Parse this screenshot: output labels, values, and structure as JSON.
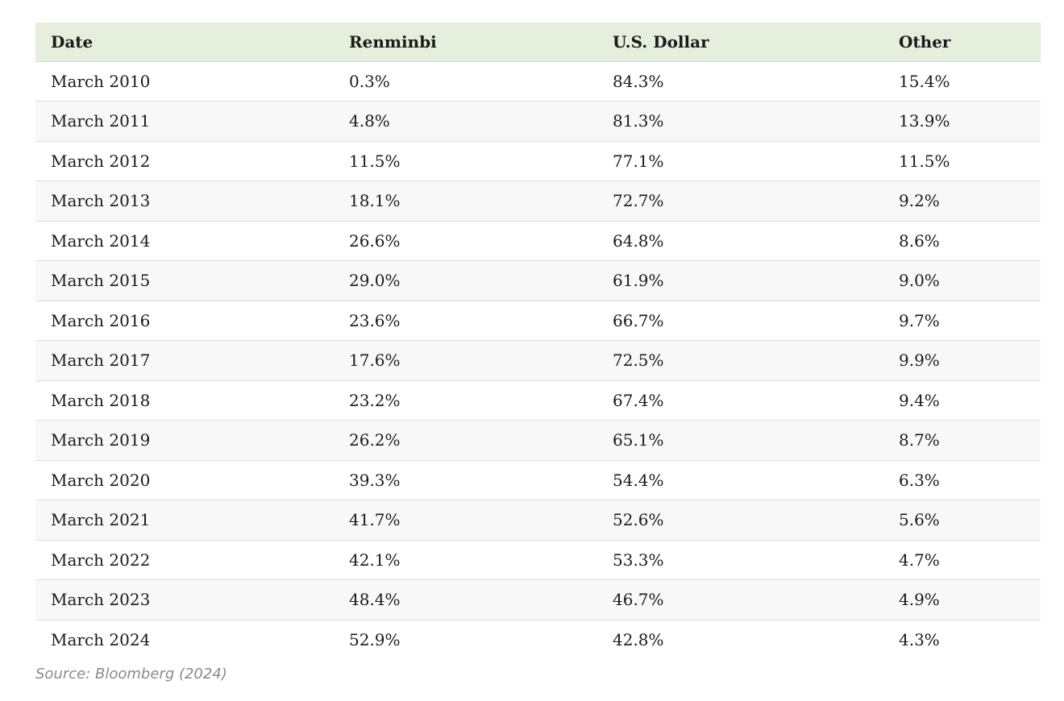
{
  "table": {
    "headers": [
      "Date",
      "Renminbi",
      "U.S. Dollar",
      "Other"
    ],
    "rows": [
      [
        "March 2010",
        "0.3%",
        "84.3%",
        "15.4%"
      ],
      [
        "March 2011",
        "4.8%",
        "81.3%",
        "13.9%"
      ],
      [
        "March 2012",
        "11.5%",
        "77.1%",
        "11.5%"
      ],
      [
        "March 2013",
        "18.1%",
        "72.7%",
        "9.2%"
      ],
      [
        "March 2014",
        "26.6%",
        "64.8%",
        "8.6%"
      ],
      [
        "March 2015",
        "29.0%",
        "61.9%",
        "9.0%"
      ],
      [
        "March 2016",
        "23.6%",
        "66.7%",
        "9.7%"
      ],
      [
        "March 2017",
        "17.6%",
        "72.5%",
        "9.9%"
      ],
      [
        "March 2018",
        "23.2%",
        "67.4%",
        "9.4%"
      ],
      [
        "March 2019",
        "26.2%",
        "65.1%",
        "8.7%"
      ],
      [
        "March 2020",
        "39.3%",
        "54.4%",
        "6.3%"
      ],
      [
        "March 2021",
        "41.7%",
        "52.6%",
        "5.6%"
      ],
      [
        "March 2022",
        "42.1%",
        "53.3%",
        "4.7%"
      ],
      [
        "March 2023",
        "48.4%",
        "46.7%",
        "4.9%"
      ],
      [
        "March 2024",
        "52.9%",
        "42.8%",
        "4.3%"
      ]
    ]
  },
  "source": "Source: Bloomberg (2024)",
  "colors": {
    "header_bg": "#e6efdc",
    "stripe_bg": "#f8f8f8",
    "source_text": "#8a8a8a"
  }
}
